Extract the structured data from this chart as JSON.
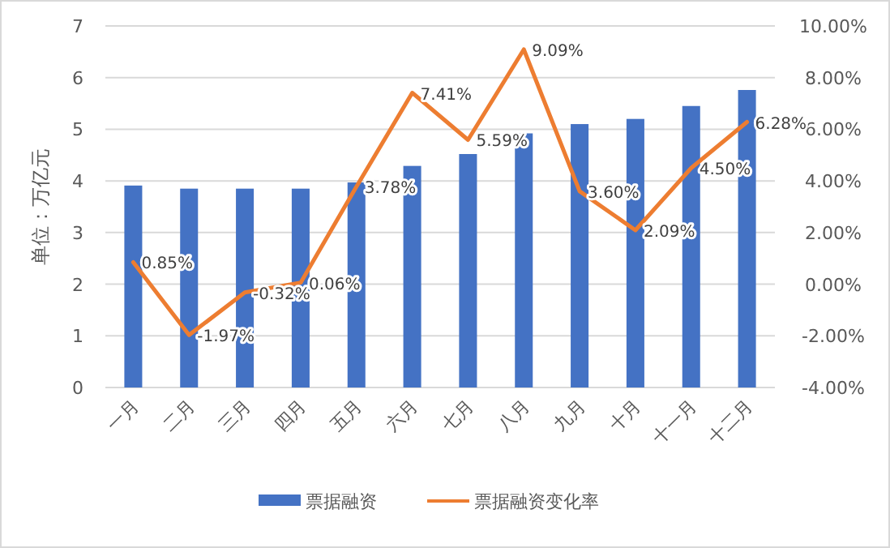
{
  "chart_data": {
    "type": "bar",
    "ylabel": "单位：万亿元",
    "categories": [
      "一月",
      "二月",
      "三月",
      "四月",
      "五月",
      "六月",
      "七月",
      "八月",
      "九月",
      "十月",
      "十一月",
      "十二月"
    ],
    "series": [
      {
        "name": "票据融资",
        "color": "#4472c4",
        "values": [
          3.91,
          3.85,
          3.85,
          3.85,
          3.97,
          4.29,
          4.52,
          4.92,
          5.1,
          5.2,
          5.45,
          5.76
        ]
      },
      {
        "name": "票据融资变化率",
        "type": "line",
        "axis": "y2",
        "color": "#ed7d31",
        "values": [
          0.85,
          -1.97,
          -0.32,
          0.06,
          3.78,
          7.41,
          5.59,
          9.09,
          3.6,
          2.09,
          4.5,
          6.28
        ],
        "value_labels": [
          "0.85%",
          "-1.97%",
          "-0.32%",
          "0.06%",
          "3.78%",
          "7.41%",
          "5.59%",
          "9.09%",
          "3.60%",
          "2.09%",
          "4.50%",
          "6.28%"
        ]
      }
    ],
    "ylim": [
      0,
      7
    ],
    "yticks": [
      0,
      1,
      2,
      3,
      4,
      5,
      6,
      7
    ],
    "y2lim": [
      -4,
      10
    ],
    "y2ticks": [
      {
        "value": -4,
        "label": "-4.00%"
      },
      {
        "value": -2,
        "label": "-2.00%"
      },
      {
        "value": 0,
        "label": "0.00%"
      },
      {
        "value": 2,
        "label": "2.00%"
      },
      {
        "value": 4,
        "label": "4.00%"
      },
      {
        "value": 6,
        "label": "6.00%"
      },
      {
        "value": 8,
        "label": "8.00%"
      },
      {
        "value": 10,
        "label": "10.00%"
      }
    ],
    "grid": "y",
    "legend": "bottom",
    "marker": "none"
  }
}
